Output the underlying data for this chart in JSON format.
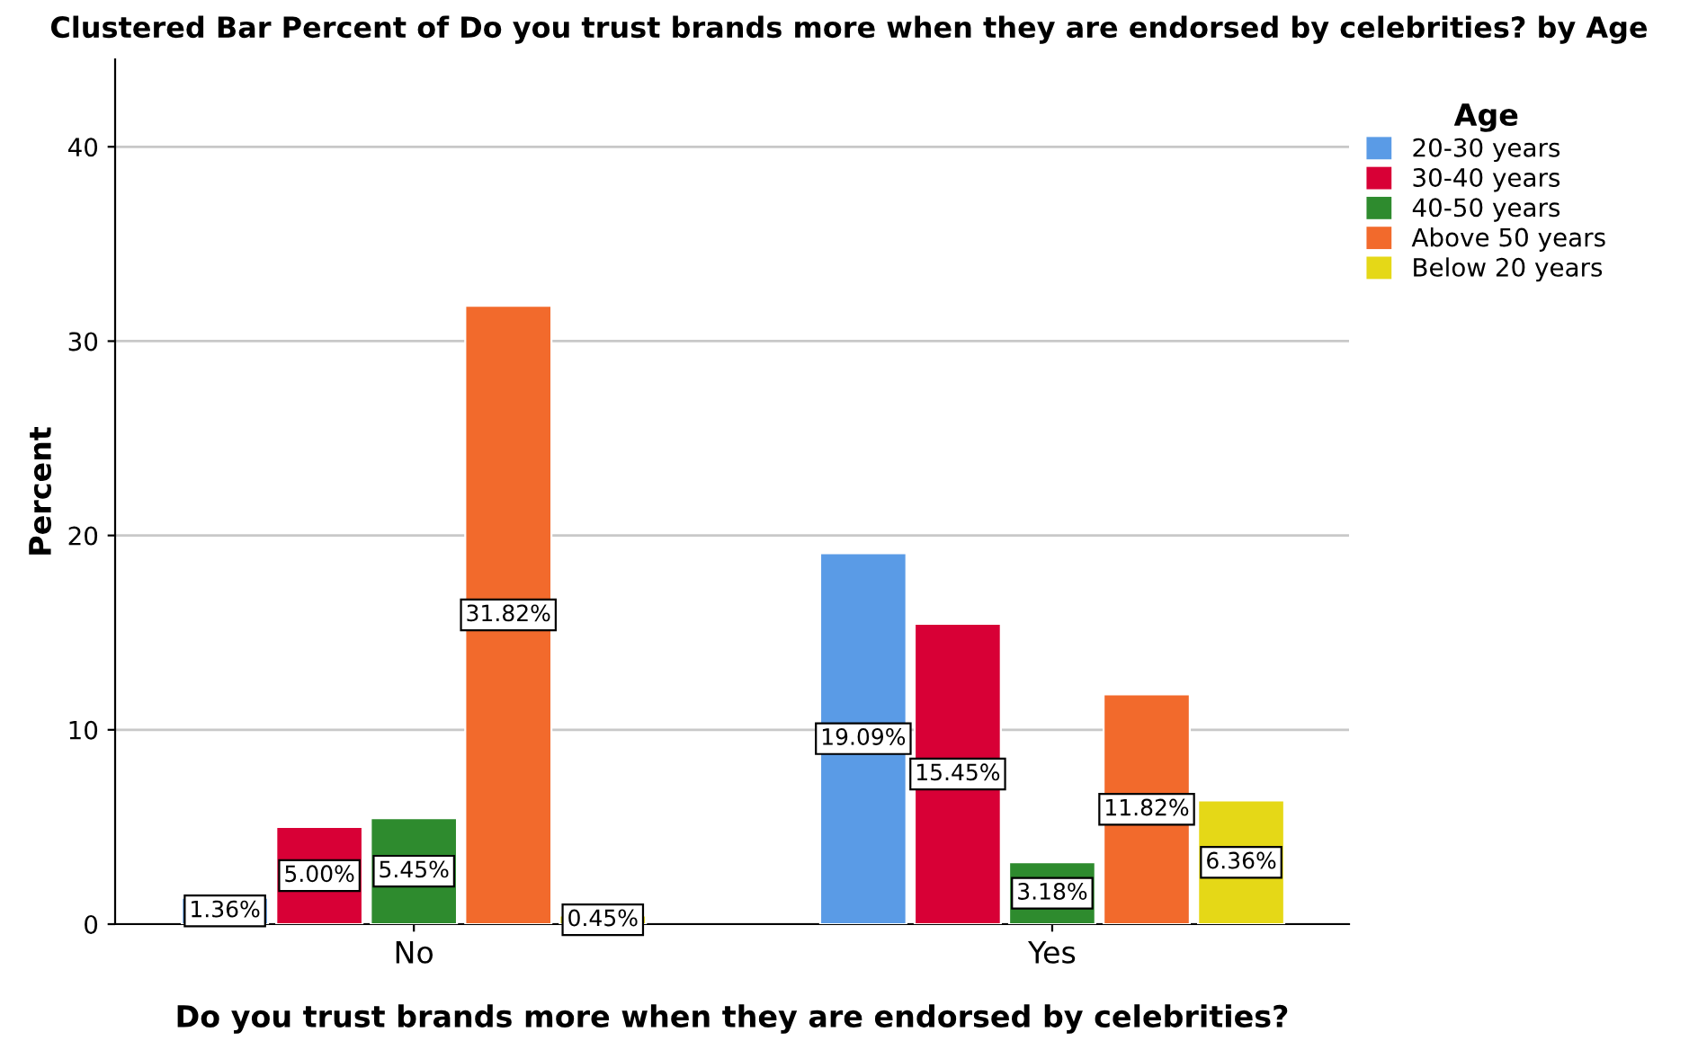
{
  "chart_data": {
    "type": "bar",
    "title": "Clustered Bar Percent of Do you trust brands more when they are endorsed by celebrities? by Age",
    "xlabel": "Do you trust brands more when they are endorsed by celebrities?",
    "ylabel": "Percent",
    "categories": [
      "No",
      "Yes"
    ],
    "series": [
      {
        "name": "20-30 years",
        "color": "#5a9be6",
        "values": [
          1.36,
          19.09
        ],
        "value_labels": [
          "1.36%",
          "19.09%"
        ]
      },
      {
        "name": "30-40 years",
        "color": "#d80036",
        "values": [
          5.0,
          15.45
        ],
        "value_labels": [
          "5.00%",
          "15.45%"
        ]
      },
      {
        "name": "40-50 years",
        "color": "#2e8b2e",
        "values": [
          5.45,
          3.18
        ],
        "value_labels": [
          "5.45%",
          "3.18%"
        ]
      },
      {
        "name": "Above 50 years",
        "color": "#f26a2c",
        "values": [
          31.82,
          11.82
        ],
        "value_labels": [
          "31.82%",
          "11.82%"
        ]
      },
      {
        "name": "Below 20 years",
        "color": "#e5d817",
        "values": [
          0.45,
          6.36
        ],
        "value_labels": [
          "0.45%",
          "6.36%"
        ]
      }
    ],
    "legend_title": "Age",
    "legend": "top right",
    "ylim": [
      0,
      44.5
    ],
    "yticks": [
      0,
      10,
      20,
      30,
      40
    ],
    "grid": "y"
  }
}
